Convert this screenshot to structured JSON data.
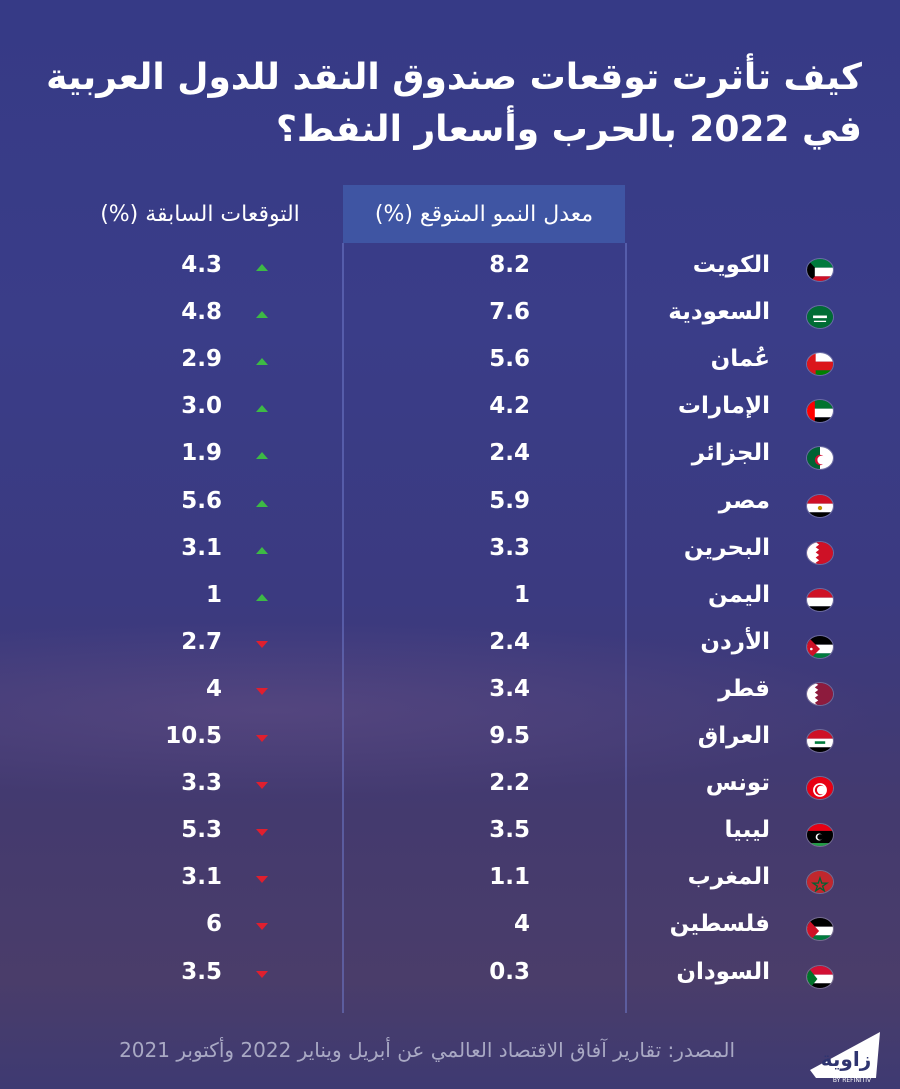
{
  "title": "كيف تأثرت توقعات صندوق النقد للدول العربية في 2022 بالحرب وأسعار النفط؟",
  "headers": {
    "growth": "معدل النمو المتوقع (%)",
    "previous": "التوقعات السابقة (%)"
  },
  "colors": {
    "up": "#3dba45",
    "down": "#e01f2e",
    "header_bg": "#3f55a3"
  },
  "chart_data": {
    "type": "table",
    "columns": [
      "معدل النمو المتوقع (%)",
      "التوقعات السابقة (%)"
    ],
    "rows": [
      {
        "country": "الكويت",
        "growth": "8.2",
        "previous": "4.3",
        "direction": "up",
        "flag": "kuwait"
      },
      {
        "country": "السعودية",
        "growth": "7.6",
        "previous": "4.8",
        "direction": "up",
        "flag": "saudi"
      },
      {
        "country": "عُمان",
        "growth": "5.6",
        "previous": "2.9",
        "direction": "up",
        "flag": "oman"
      },
      {
        "country": "الإمارات",
        "growth": "4.2",
        "previous": "3.0",
        "direction": "up",
        "flag": "uae"
      },
      {
        "country": "الجزائر",
        "growth": "2.4",
        "previous": "1.9",
        "direction": "up",
        "flag": "algeria"
      },
      {
        "country": "مصر",
        "growth": "5.9",
        "previous": "5.6",
        "direction": "up",
        "flag": "egypt"
      },
      {
        "country": "البحرين",
        "growth": "3.3",
        "previous": "3.1",
        "direction": "up",
        "flag": "bahrain"
      },
      {
        "country": "اليمن",
        "growth": "1",
        "previous": "1",
        "direction": "up",
        "flag": "yemen"
      },
      {
        "country": "الأردن",
        "growth": "2.4",
        "previous": "2.7",
        "direction": "down",
        "flag": "jordan"
      },
      {
        "country": "قطر",
        "growth": "3.4",
        "previous": "4",
        "direction": "down",
        "flag": "qatar"
      },
      {
        "country": "العراق",
        "growth": "9.5",
        "previous": "10.5",
        "direction": "down",
        "flag": "iraq"
      },
      {
        "country": "تونس",
        "growth": "2.2",
        "previous": "3.3",
        "direction": "down",
        "flag": "tunisia"
      },
      {
        "country": "ليبيا",
        "growth": "3.5",
        "previous": "5.3",
        "direction": "down",
        "flag": "libya"
      },
      {
        "country": "المغرب",
        "growth": "1.1",
        "previous": "3.1",
        "direction": "down",
        "flag": "morocco"
      },
      {
        "country": "فلسطين",
        "growth": "4",
        "previous": "6",
        "direction": "down",
        "flag": "palestine"
      },
      {
        "country": "السودان",
        "growth": "0.3",
        "previous": "3.5",
        "direction": "down",
        "flag": "sudan"
      }
    ]
  },
  "source": "المصدر: تقارير آفاق الاقتصاد العالمي عن أبريل  ويناير 2022 وأكتوبر 2021",
  "logo": {
    "name": "زاوية",
    "tagline": "BY REFINITIV"
  }
}
